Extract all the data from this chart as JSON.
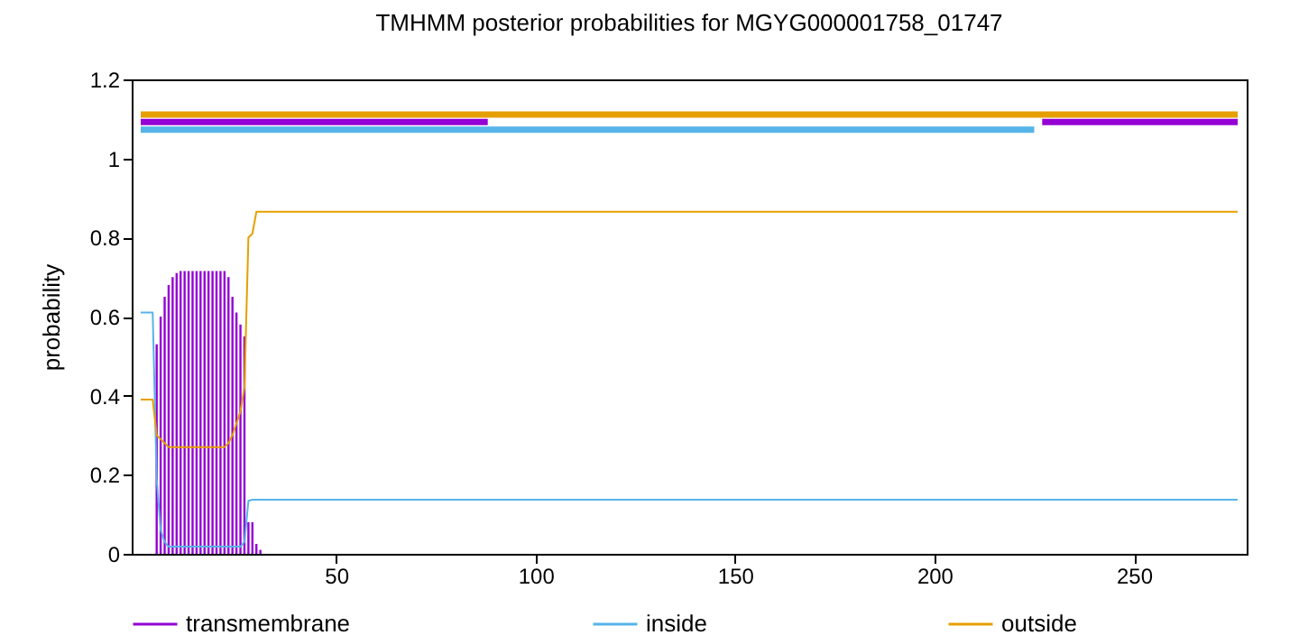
{
  "chart_data": {
    "type": "line",
    "title": "TMHMM posterior probabilities for MGYG000001758_01747",
    "ylabel": "probability",
    "xlim": [
      1,
      276
    ],
    "xticks": [
      50,
      100,
      150,
      200,
      250
    ],
    "ylim": [
      0,
      1.2
    ],
    "yticks": [
      0,
      0.2,
      0.4,
      0.6,
      0.8,
      1,
      1.2
    ],
    "grid": false,
    "legend": "bottom",
    "series": [
      {
        "name": "transmembrane",
        "type": "bar",
        "color": "#9400d3",
        "x": [
          5,
          6,
          7,
          8,
          9,
          10,
          11,
          12,
          13,
          14,
          15,
          16,
          17,
          18,
          19,
          20,
          21,
          22,
          23,
          24,
          25,
          26,
          27,
          28,
          29,
          30,
          31
        ],
        "values": [
          0.53,
          0.6,
          0.65,
          0.68,
          0.7,
          0.71,
          0.715,
          0.715,
          0.715,
          0.715,
          0.715,
          0.715,
          0.715,
          0.715,
          0.715,
          0.715,
          0.715,
          0.715,
          0.7,
          0.65,
          0.61,
          0.58,
          0.55,
          0.08,
          0.08,
          0.025,
          0.01
        ]
      },
      {
        "name": "inside",
        "color": "#56b4e9",
        "x": [
          1,
          4,
          5,
          6,
          7,
          8,
          26,
          27,
          28,
          29,
          276
        ],
        "values": [
          0.61,
          0.61,
          0.19,
          0.06,
          0.03,
          0.018,
          0.018,
          0.03,
          0.134,
          0.137,
          0.137
        ]
      },
      {
        "name": "outside",
        "color": "#e69f00",
        "x": [
          1,
          4,
          5,
          6,
          7,
          8,
          22,
          23,
          24,
          25,
          26,
          27,
          28,
          29,
          30,
          276
        ],
        "values": [
          0.39,
          0.39,
          0.3,
          0.29,
          0.28,
          0.27,
          0.27,
          0.28,
          0.3,
          0.33,
          0.36,
          0.42,
          0.8,
          0.81,
          0.865,
          0.865
        ]
      },
      {
        "color": "#56b4e9",
        "x": [
          1,
          225
        ],
        "values": [
          1.073,
          1.073
        ]
      },
      {
        "color": "#9400d3",
        "x": [
          1,
          88
        ],
        "values": [
          1.092,
          1.092
        ]
      },
      {
        "color": "#9400d3",
        "x": [
          227,
          276
        ],
        "values": [
          1.092,
          1.092
        ]
      },
      {
        "color": "#e69f00",
        "x": [
          1,
          276
        ],
        "values": [
          1.111,
          1.111
        ]
      }
    ]
  }
}
